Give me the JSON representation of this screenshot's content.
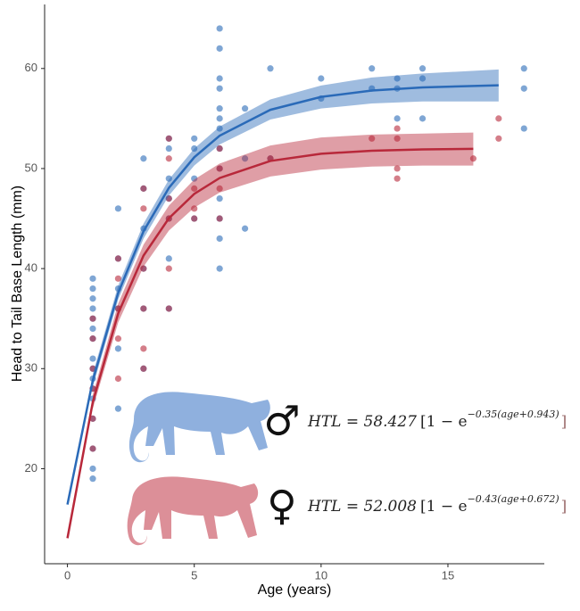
{
  "chart_data": {
    "type": "scatter",
    "x_label": "Age (years)",
    "y_label": "Head to Tail Base Length (mm)",
    "xlim": [
      -0.9,
      18.8
    ],
    "ylim": [
      10.5,
      66.4
    ],
    "xticks": [
      0,
      5,
      10,
      15
    ],
    "yticks": [
      20,
      30,
      40,
      50,
      60
    ],
    "grid": false,
    "series": [
      {
        "color": "#2a6ab8",
        "x": [
          1,
          1,
          1,
          1,
          1,
          1,
          1,
          1,
          1,
          1,
          1,
          1,
          1,
          1,
          1,
          1,
          2,
          2,
          2,
          2,
          2,
          2,
          3,
          3,
          3,
          3,
          3,
          3,
          4,
          4,
          4,
          4,
          4,
          4,
          4,
          5,
          5,
          5,
          5,
          6,
          6,
          6,
          6,
          6,
          6,
          6,
          6,
          6,
          6,
          6,
          6,
          6,
          7,
          7,
          7,
          8,
          8,
          10,
          10,
          12,
          12,
          13,
          13,
          13,
          14,
          14,
          14,
          18,
          18,
          18
        ],
        "values": [
          19,
          20,
          22,
          25,
          27,
          28,
          29,
          30,
          31,
          33,
          34,
          35,
          36,
          37,
          38,
          39,
          26,
          32,
          36,
          38,
          41,
          46,
          30,
          36,
          40,
          44,
          48,
          51,
          36,
          41,
          45,
          47,
          49,
          52,
          53,
          45,
          49,
          52,
          53,
          40,
          43,
          45,
          47,
          50,
          52,
          54,
          55,
          56,
          58,
          59,
          62,
          64,
          44,
          51,
          56,
          51,
          60,
          57,
          59,
          58,
          60,
          55,
          58,
          59,
          55,
          59,
          60,
          54,
          58,
          60
        ],
        "fit": {
          "x": [
            0,
            1,
            2,
            3,
            4,
            5,
            6,
            8,
            10,
            12,
            14,
            17
          ],
          "y": [
            16.42,
            28.83,
            37.57,
            43.73,
            48.07,
            51.13,
            53.28,
            55.87,
            57.16,
            57.8,
            58.11,
            58.32
          ]
        },
        "band": {
          "x": [
            1,
            2,
            3,
            4,
            5,
            6,
            8,
            10,
            12,
            14,
            17
          ],
          "lower": [
            28.2,
            36.9,
            43.0,
            47.3,
            50.3,
            52.4,
            54.9,
            56.0,
            56.5,
            56.7,
            56.7
          ],
          "upper": [
            29.5,
            38.3,
            44.5,
            48.9,
            52.0,
            54.2,
            56.9,
            58.3,
            59.1,
            59.5,
            59.9
          ]
        }
      },
      {
        "color": "#b8283a",
        "x": [
          1,
          1,
          1,
          1,
          1,
          1,
          2,
          2,
          2,
          2,
          2,
          3,
          3,
          3,
          3,
          3,
          3,
          4,
          4,
          4,
          4,
          4,
          4,
          5,
          5,
          5,
          6,
          6,
          6,
          6,
          8,
          12,
          13,
          13,
          13,
          13,
          16,
          17,
          17
        ],
        "values": [
          22,
          25,
          28,
          30,
          33,
          35,
          29,
          33,
          36,
          39,
          41,
          30,
          32,
          36,
          40,
          46,
          48,
          36,
          40,
          45,
          47,
          51,
          53,
          45,
          46,
          48,
          45,
          48,
          50,
          52,
          51,
          53,
          49,
          50,
          53,
          54,
          51,
          53,
          55
        ],
        "fit": {
          "x": [
            0,
            1,
            2,
            3,
            4,
            5,
            6,
            8,
            10,
            12,
            14,
            16
          ],
          "y": [
            13.05,
            26.67,
            35.52,
            41.3,
            45.03,
            47.47,
            49.05,
            50.76,
            51.48,
            51.78,
            51.91,
            51.97
          ]
        },
        "band": {
          "x": [
            1,
            2,
            3,
            4,
            5,
            6,
            8,
            10,
            12,
            14,
            16
          ],
          "lower": [
            26.0,
            34.6,
            40.2,
            43.8,
            46.1,
            47.6,
            49.2,
            49.9,
            50.2,
            50.3,
            50.3
          ],
          "upper": [
            27.4,
            36.5,
            42.4,
            46.3,
            48.9,
            50.5,
            52.3,
            53.1,
            53.4,
            53.5,
            53.6
          ]
        }
      }
    ],
    "annotations": [
      {
        "symbol": "♂",
        "lhs": "HTL = 58.427",
        "open": "[1 − e",
        "exponent": "−0.35(age+0.943)",
        "close": "]"
      },
      {
        "symbol": "♀",
        "lhs": "HTL = 52.008",
        "open": "[1 − e",
        "exponent": "−0.43(age+0.672)",
        "close": "]"
      }
    ]
  }
}
